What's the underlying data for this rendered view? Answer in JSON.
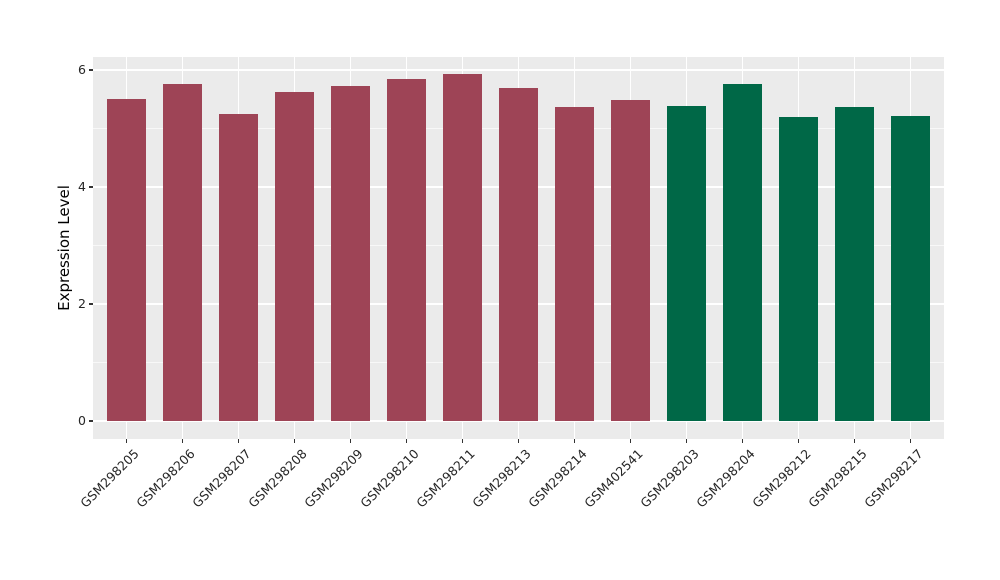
{
  "figure": {
    "background": "#FFFFFF"
  },
  "chart_data": {
    "type": "bar",
    "title": "",
    "xlabel": "",
    "ylabel": "Expression Level",
    "categories": [
      "GSM298205",
      "GSM298206",
      "GSM298207",
      "GSM298208",
      "GSM298209",
      "GSM298210",
      "GSM298211",
      "GSM298213",
      "GSM298214",
      "GSM402541",
      "GSM298203",
      "GSM298204",
      "GSM298212",
      "GSM298215",
      "GSM298217"
    ],
    "values": [
      5.5,
      5.77,
      5.25,
      5.63,
      5.73,
      5.84,
      5.93,
      5.7,
      5.36,
      5.48,
      5.38,
      5.77,
      5.19,
      5.37,
      5.22
    ],
    "bar_colors": [
      "#9E4456",
      "#9E4456",
      "#9E4456",
      "#9E4456",
      "#9E4456",
      "#9E4456",
      "#9E4456",
      "#9E4456",
      "#9E4456",
      "#9E4456",
      "#006847",
      "#006847",
      "#006847",
      "#006847",
      "#006847"
    ],
    "group_colors": {
      "left_group": "#9E4456",
      "right_group": "#006847"
    },
    "yticks": [
      0,
      2,
      4,
      6
    ],
    "ylim": [
      0,
      6.2
    ],
    "grid": true,
    "legend": false,
    "panel_bg": "#EBEBEB",
    "grid_color": "#FFFFFF",
    "minor_grid_color": "rgba(255,255,255,0.65)",
    "tick_label_color": "#262626",
    "axis_title_color": "#000000"
  }
}
